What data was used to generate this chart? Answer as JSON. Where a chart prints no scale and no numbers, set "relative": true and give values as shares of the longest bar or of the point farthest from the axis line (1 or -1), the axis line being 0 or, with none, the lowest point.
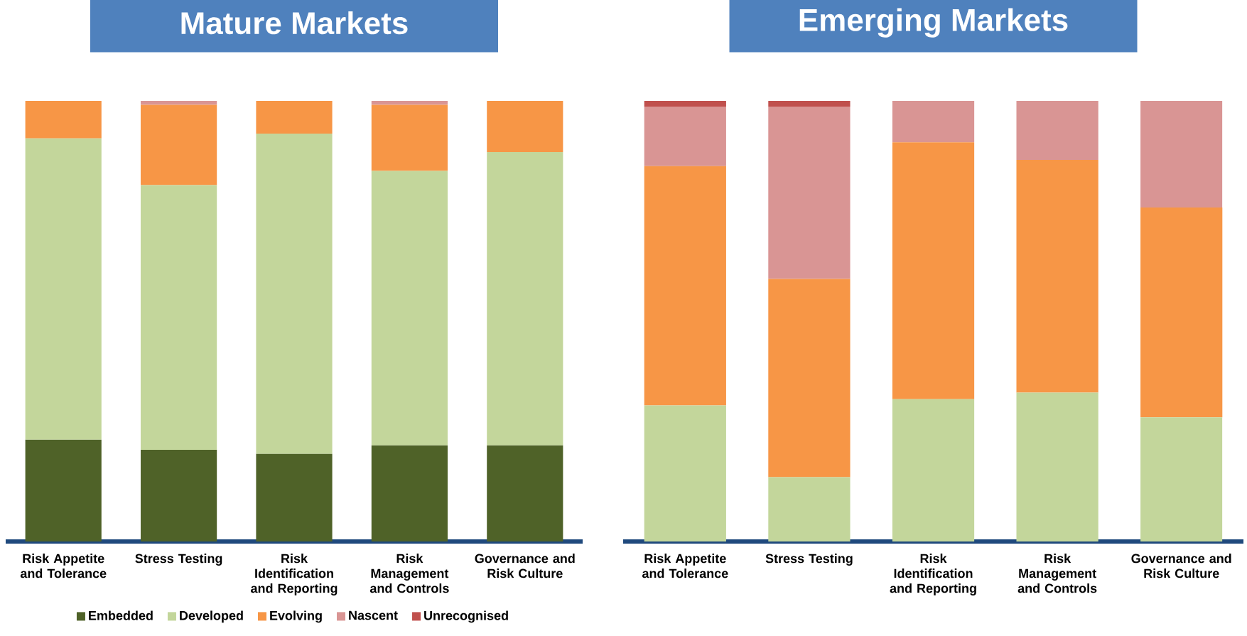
{
  "chart_data": [
    {
      "type": "bar",
      "title": "Mature Markets",
      "stacked": true,
      "relative": true,
      "legend": "bottom",
      "categories": [
        "Risk Appetite and Tolerance",
        "Stress Testing",
        "Risk Identification and Reporting",
        "Risk Management and Controls",
        "Governance and Risk Culture"
      ],
      "series": [
        {
          "name": "Embedded",
          "color": "#4f6228",
          "values": [
            0.231,
            0.208,
            0.199,
            0.218,
            0.218
          ]
        },
        {
          "name": "Developed",
          "color": "#c3d69b",
          "values": [
            0.684,
            0.601,
            0.727,
            0.623,
            0.666
          ]
        },
        {
          "name": "Evolving",
          "color": "#f79646",
          "values": [
            0.085,
            0.182,
            0.074,
            0.15,
            0.116
          ]
        },
        {
          "name": "Nascent",
          "color": "#d99594",
          "values": [
            0,
            0.009,
            0,
            0.009,
            0
          ]
        },
        {
          "name": "Unrecognised",
          "color": "#c0504d",
          "values": [
            0,
            0,
            0,
            0,
            0
          ]
        }
      ]
    },
    {
      "type": "bar",
      "title": "Emerging Markets",
      "stacked": true,
      "relative": true,
      "categories": [
        "Risk Appetite and Tolerance",
        "Stress Testing",
        "Risk Identification and Reporting",
        "Risk Management and Controls",
        "Governance and Risk Culture"
      ],
      "series": [
        {
          "color": "#c3d69b",
          "values": [
            0.309,
            0.146,
            0.323,
            0.338,
            0.282
          ]
        },
        {
          "color": "#f79646",
          "values": [
            0.543,
            0.45,
            0.583,
            0.528,
            0.476
          ]
        },
        {
          "color": "#d99594",
          "values": [
            0.135,
            0.391,
            0.094,
            0.134,
            0.242
          ]
        },
        {
          "color": "#c0504d",
          "values": [
            0.013,
            0.013,
            0,
            0,
            0
          ]
        }
      ]
    }
  ]
}
